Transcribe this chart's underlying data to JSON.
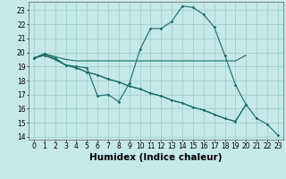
{
  "xlabel": "Humidex (Indice chaleur)",
  "background_color": "#c5e8e8",
  "grid_color": "#9ecece",
  "line_color": "#1a6b6b",
  "xlim": [
    -0.5,
    23.5
  ],
  "ylim": [
    13.8,
    23.6
  ],
  "yticks": [
    14,
    15,
    16,
    17,
    18,
    19,
    20,
    21,
    22,
    23
  ],
  "xticks": [
    0,
    1,
    2,
    3,
    4,
    5,
    6,
    7,
    8,
    9,
    10,
    11,
    12,
    13,
    14,
    15,
    16,
    17,
    18,
    19,
    20,
    21,
    22,
    23
  ],
  "line1_x": [
    0,
    1,
    2,
    3,
    4,
    5,
    6,
    7,
    8,
    9,
    10,
    11,
    12,
    13,
    14,
    15,
    16,
    17,
    18,
    19,
    20
  ],
  "line1_y": [
    19.6,
    19.9,
    19.7,
    19.5,
    19.4,
    19.4,
    19.4,
    19.4,
    19.4,
    19.4,
    19.4,
    19.4,
    19.4,
    19.4,
    19.4,
    19.4,
    19.4,
    19.4,
    19.4,
    19.4,
    19.8
  ],
  "line2_x": [
    0,
    1,
    2,
    3,
    4,
    5,
    6,
    7,
    8,
    9,
    10,
    11,
    12,
    13,
    14,
    15,
    16,
    17,
    18,
    19,
    20
  ],
  "line2_y": [
    19.6,
    19.9,
    19.6,
    19.1,
    19.0,
    18.9,
    16.9,
    17.0,
    16.5,
    17.8,
    20.2,
    21.7,
    21.7,
    22.2,
    23.3,
    23.2,
    22.7,
    21.8,
    19.8,
    17.7,
    16.3
  ],
  "line3_x": [
    0,
    1,
    2,
    3,
    4,
    5,
    6,
    7,
    8,
    9,
    10,
    11,
    12,
    13,
    14,
    15,
    16,
    17,
    18,
    19,
    20,
    21,
    22,
    23
  ],
  "line3_y": [
    19.6,
    19.8,
    19.5,
    19.1,
    18.9,
    18.6,
    18.4,
    18.1,
    17.9,
    17.6,
    17.4,
    17.1,
    16.9,
    16.6,
    16.4,
    16.1,
    15.9,
    15.6,
    15.3,
    15.1,
    16.3,
    15.3,
    14.9,
    14.1
  ],
  "line4_x": [
    0,
    1,
    2,
    3,
    4,
    5,
    6,
    7,
    8,
    9,
    10,
    11,
    12,
    13,
    14,
    15,
    16,
    17,
    18,
    19,
    20
  ],
  "line4_y": [
    19.6,
    19.8,
    19.5,
    19.1,
    18.9,
    18.6,
    18.4,
    18.1,
    17.9,
    17.6,
    17.4,
    17.1,
    16.9,
    16.6,
    16.4,
    16.1,
    15.9,
    15.6,
    15.3,
    15.1,
    16.3
  ],
  "tick_font_size": 5.5,
  "label_font_size": 7.5
}
